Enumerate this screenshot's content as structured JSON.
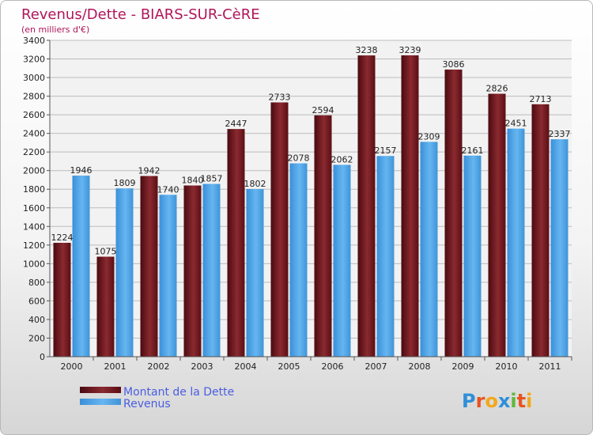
{
  "chart_data": {
    "type": "bar",
    "title": "Revenus/Dette - BIARS-SUR-CèRE",
    "subtitle": "(en milliers d'€)",
    "categories": [
      "2000",
      "2001",
      "2002",
      "2003",
      "2004",
      "2005",
      "2006",
      "2007",
      "2008",
      "2009",
      "2010",
      "2011"
    ],
    "series": [
      {
        "name": "Montant de la Dette",
        "color": "#6b1018",
        "values": [
          1224,
          1075,
          1942,
          1840,
          2447,
          2733,
          2594,
          3238,
          3239,
          3086,
          2826,
          2713
        ]
      },
      {
        "name": "Revenus",
        "color": "#4ea6e6",
        "values": [
          1946,
          1809,
          1740,
          1857,
          1802,
          2078,
          2062,
          2157,
          2309,
          2161,
          2451,
          2337
        ]
      }
    ],
    "yticks": [
      0,
      200,
      400,
      600,
      800,
      1000,
      1200,
      1400,
      1600,
      1800,
      2000,
      2200,
      2400,
      2600,
      2800,
      3000,
      3200,
      3400
    ],
    "ylim": [
      0,
      3400
    ],
    "grid": true,
    "legend": "bottom-left"
  },
  "logo": {
    "text": "Proxiti"
  }
}
